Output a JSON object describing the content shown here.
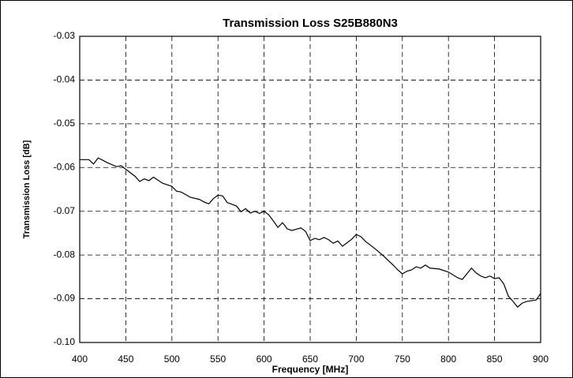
{
  "chart_data": {
    "type": "line",
    "title": "Transmission Loss S25B880N3",
    "xlabel": "Frequency [MHz]",
    "ylabel": "Transmission Loss [dB]",
    "x": [
      400,
      410,
      415,
      420,
      430,
      440,
      445,
      450,
      460,
      465,
      470,
      475,
      480,
      490,
      500,
      505,
      510,
      520,
      530,
      535,
      540,
      545,
      550,
      555,
      560,
      570,
      575,
      580,
      585,
      590,
      595,
      600,
      605,
      610,
      615,
      620,
      625,
      630,
      640,
      645,
      650,
      655,
      660,
      665,
      670,
      675,
      680,
      685,
      690,
      695,
      700,
      705,
      710,
      720,
      730,
      740,
      745,
      750,
      755,
      760,
      765,
      770,
      775,
      780,
      790,
      800,
      810,
      815,
      820,
      825,
      830,
      835,
      840,
      845,
      850,
      855,
      860,
      865,
      870,
      875,
      880,
      885,
      895,
      900
    ],
    "values": [
      -0.0582,
      -0.0582,
      -0.0592,
      -0.0578,
      -0.0589,
      -0.0598,
      -0.0596,
      -0.0604,
      -0.062,
      -0.0632,
      -0.0626,
      -0.063,
      -0.0622,
      -0.0636,
      -0.0643,
      -0.0654,
      -0.0656,
      -0.0668,
      -0.0673,
      -0.0679,
      -0.0683,
      -0.0671,
      -0.0663,
      -0.0665,
      -0.068,
      -0.0688,
      -0.0701,
      -0.0694,
      -0.0704,
      -0.07,
      -0.0705,
      -0.07,
      -0.0708,
      -0.0722,
      -0.0737,
      -0.0726,
      -0.074,
      -0.0744,
      -0.0738,
      -0.0746,
      -0.0767,
      -0.0762,
      -0.0765,
      -0.076,
      -0.0765,
      -0.0773,
      -0.0768,
      -0.078,
      -0.0772,
      -0.0764,
      -0.0753,
      -0.0758,
      -0.0769,
      -0.0785,
      -0.0803,
      -0.0823,
      -0.0834,
      -0.0843,
      -0.0837,
      -0.0834,
      -0.0827,
      -0.083,
      -0.0823,
      -0.083,
      -0.0832,
      -0.0839,
      -0.0852,
      -0.0856,
      -0.0843,
      -0.083,
      -0.0841,
      -0.0848,
      -0.0852,
      -0.0848,
      -0.0854,
      -0.0852,
      -0.0866,
      -0.0894,
      -0.0906,
      -0.0919,
      -0.091,
      -0.0906,
      -0.0903,
      -0.0888
    ],
    "color": "#000000",
    "xlim": [
      400,
      900
    ],
    "xticks": [
      400,
      450,
      500,
      550,
      600,
      650,
      700,
      750,
      800,
      850,
      900
    ],
    "ylim": [
      -0.1,
      -0.03
    ],
    "yticks": [
      -0.03,
      -0.04,
      -0.05,
      -0.06,
      -0.07,
      -0.08,
      -0.09,
      {
        "value": -0.1,
        "label": "-0.10"
      }
    ],
    "grid": true
  }
}
